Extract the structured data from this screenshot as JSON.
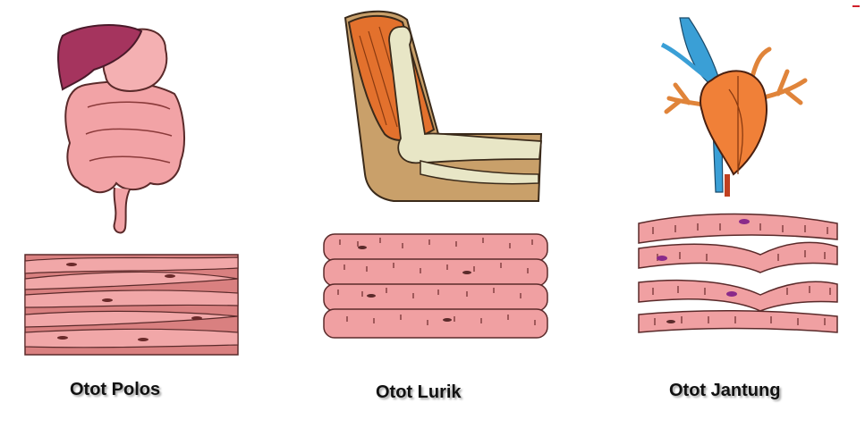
{
  "panels": [
    {
      "id": "polos",
      "caption": "Otot Polos"
    },
    {
      "id": "lurik",
      "caption": "Otot Lurik"
    },
    {
      "id": "jantung",
      "caption": "Otot Jantung"
    }
  ]
}
